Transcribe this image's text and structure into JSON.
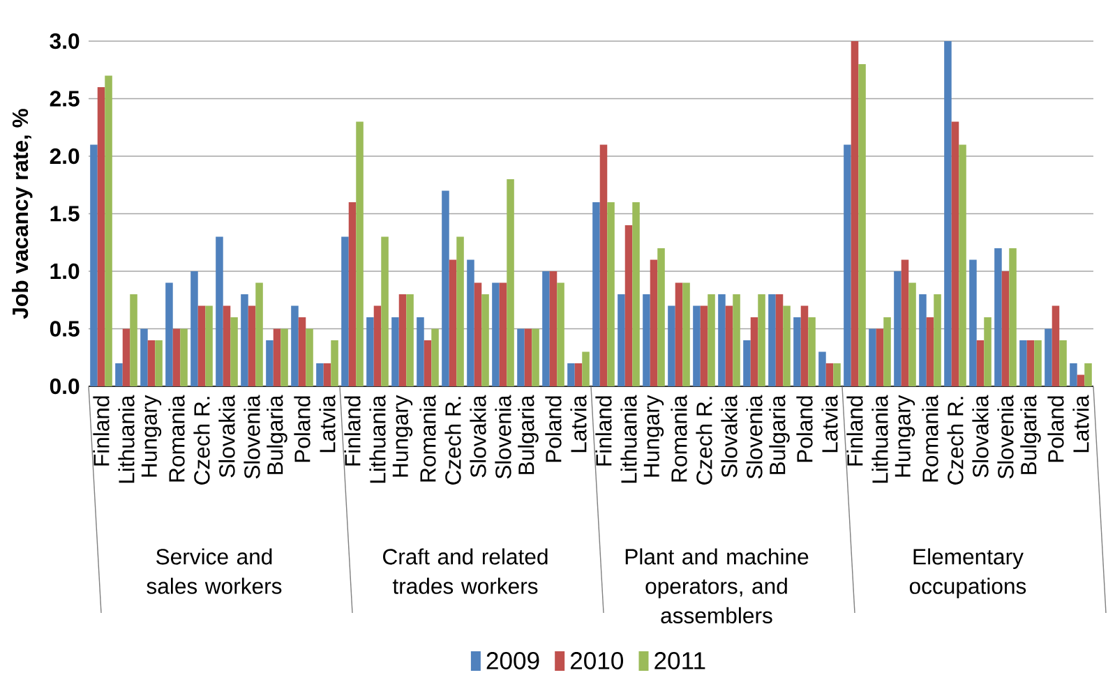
{
  "chart_data": {
    "type": "bar",
    "ylabel": "Job vacancy rate, %",
    "categories": [
      "Finland",
      "Lithuania",
      "Hungary",
      "Romania",
      "Czech R.",
      "Slovakia",
      "Slovenia",
      "Bulgaria",
      "Poland",
      "Latvia",
      "Finland",
      "Lithuania",
      "Hungary",
      "Romania",
      "Czech R.",
      "Slovakia",
      "Slovenia",
      "Bulgaria",
      "Poland",
      "Latvia",
      "Finland",
      "Lithuania",
      "Hungary",
      "Romania",
      "Czech R.",
      "Slovakia",
      "Slovenia",
      "Bulgaria",
      "Poland",
      "Latvia",
      "Finland",
      "Lithuania",
      "Hungary",
      "Romania",
      "Czech R.",
      "Slovakia",
      "Slovenia",
      "Bulgaria",
      "Poland",
      "Latvia"
    ],
    "series": [
      {
        "name": "2009",
        "color": "#4f81bd",
        "values": [
          2.1,
          0.2,
          0.5,
          0.9,
          1.0,
          1.3,
          0.8,
          0.4,
          0.7,
          0.2,
          1.3,
          0.6,
          0.6,
          0.6,
          1.7,
          1.1,
          0.9,
          0.5,
          1.0,
          0.2,
          1.6,
          0.8,
          0.8,
          0.7,
          0.7,
          0.8,
          0.4,
          0.8,
          0.6,
          0.3,
          2.1,
          0.5,
          1.0,
          0.8,
          3.0,
          1.1,
          1.2,
          0.4,
          0.5,
          0.2
        ]
      },
      {
        "name": "2010",
        "color": "#c0504d",
        "values": [
          2.6,
          0.5,
          0.4,
          0.5,
          0.7,
          0.7,
          0.7,
          0.5,
          0.6,
          0.2,
          1.6,
          0.7,
          0.8,
          0.4,
          1.1,
          0.9,
          0.9,
          0.5,
          1.0,
          0.2,
          2.1,
          1.4,
          1.1,
          0.9,
          0.7,
          0.7,
          0.6,
          0.8,
          0.7,
          0.2,
          3.0,
          0.5,
          1.1,
          0.6,
          2.3,
          0.4,
          1.0,
          0.4,
          0.7,
          0.1
        ]
      },
      {
        "name": "2011",
        "color": "#9bbb59",
        "values": [
          2.7,
          0.8,
          0.4,
          0.5,
          0.7,
          0.6,
          0.9,
          0.5,
          0.5,
          0.4,
          2.3,
          1.3,
          0.8,
          0.5,
          1.3,
          0.8,
          1.8,
          0.5,
          0.9,
          0.3,
          1.6,
          1.6,
          1.2,
          0.9,
          0.8,
          0.8,
          0.8,
          0.7,
          0.6,
          0.2,
          2.8,
          0.6,
          0.9,
          0.8,
          2.1,
          0.6,
          1.2,
          0.4,
          0.4,
          0.2
        ]
      }
    ],
    "annotations": [
      "Service and sales workers",
      "Craft and related trades workers",
      "Plant and machine operators, and assemblers",
      "Elementary occupations"
    ],
    "ylim": [
      0,
      3
    ],
    "yticks": [
      {
        "value": 0,
        "label": "0.0"
      },
      {
        "value": 0.5,
        "label": "0.5"
      },
      {
        "value": 1,
        "label": "1.0"
      },
      {
        "value": 1.5,
        "label": "1.5"
      },
      {
        "value": 2,
        "label": "2.0"
      },
      {
        "value": 2.5,
        "label": "2.5"
      },
      {
        "value": 3,
        "label": "3.0"
      }
    ],
    "grid": "y",
    "legend": "bottom"
  }
}
